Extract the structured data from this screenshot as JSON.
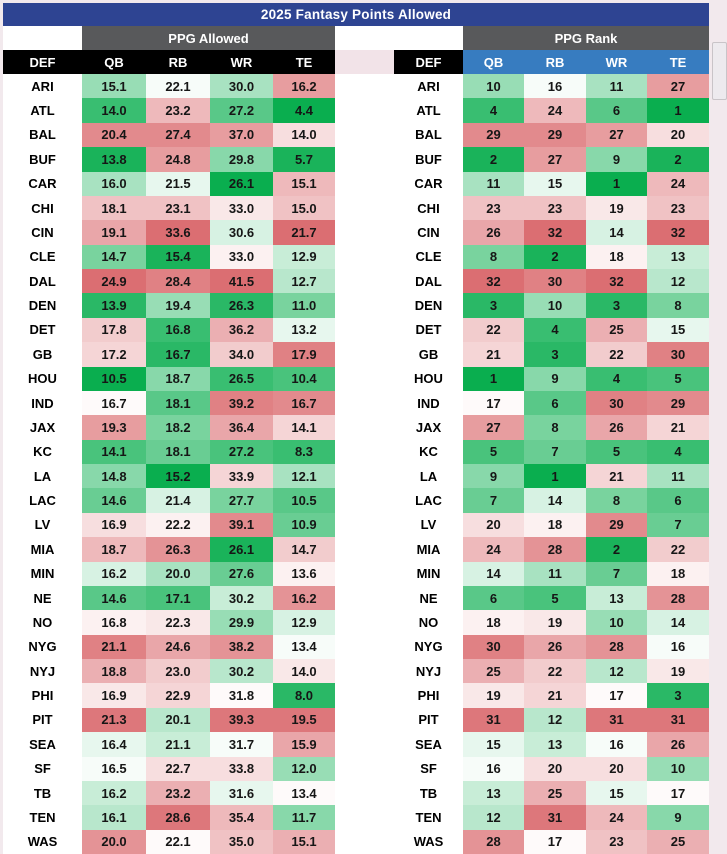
{
  "title": "2025 Fantasy Points Allowed",
  "colors": {
    "page_bg": "#F2E9ED",
    "title_bar_blue": "#2E4492",
    "group_bar_gray": "#58595B",
    "header_black": "#000000",
    "rank_header_blue": "#377CC0",
    "header_gap_pink": "#F2E3E8",
    "heat_green": "#0AAE4F",
    "heat_mid": "#FFFFFF",
    "heat_red": "#DB6E72"
  },
  "chart_data": [
    {
      "type": "table",
      "title": "PPG Allowed",
      "columns": [
        "DEF",
        "QB",
        "RB",
        "WR",
        "TE"
      ],
      "teams": [
        "ARI",
        "ATL",
        "BAL",
        "BUF",
        "CAR",
        "CHI",
        "CIN",
        "CLE",
        "DAL",
        "DEN",
        "DET",
        "GB",
        "HOU",
        "IND",
        "JAX",
        "KC",
        "LA",
        "LAC",
        "LV",
        "MIA",
        "MIN",
        "NE",
        "NO",
        "NYG",
        "NYJ",
        "PHI",
        "PIT",
        "SEA",
        "SF",
        "TB",
        "TEN",
        "WAS"
      ],
      "values": [
        [
          "15.1",
          "22.1",
          "30.0",
          "16.2"
        ],
        [
          "14.0",
          "23.2",
          "27.2",
          "4.4"
        ],
        [
          "20.4",
          "27.4",
          "37.0",
          "14.0"
        ],
        [
          "13.8",
          "24.8",
          "29.8",
          "5.7"
        ],
        [
          "16.0",
          "21.5",
          "26.1",
          "15.1"
        ],
        [
          "18.1",
          "23.1",
          "33.0",
          "15.0"
        ],
        [
          "19.1",
          "33.6",
          "30.6",
          "21.7"
        ],
        [
          "14.7",
          "15.4",
          "33.0",
          "12.9"
        ],
        [
          "24.9",
          "28.4",
          "41.5",
          "12.7"
        ],
        [
          "13.9",
          "19.4",
          "26.3",
          "11.0"
        ],
        [
          "17.8",
          "16.8",
          "36.2",
          "13.2"
        ],
        [
          "17.2",
          "16.7",
          "34.0",
          "17.9"
        ],
        [
          "10.5",
          "18.7",
          "26.5",
          "10.4"
        ],
        [
          "16.7",
          "18.1",
          "39.2",
          "16.7"
        ],
        [
          "19.3",
          "18.2",
          "36.4",
          "14.1"
        ],
        [
          "14.1",
          "18.1",
          "27.2",
          "8.3"
        ],
        [
          "14.8",
          "15.2",
          "33.9",
          "12.1"
        ],
        [
          "14.6",
          "21.4",
          "27.7",
          "10.5"
        ],
        [
          "16.9",
          "22.2",
          "39.1",
          "10.9"
        ],
        [
          "18.7",
          "26.3",
          "26.1",
          "14.7"
        ],
        [
          "16.2",
          "20.0",
          "27.6",
          "13.6"
        ],
        [
          "14.6",
          "17.1",
          "30.2",
          "16.2"
        ],
        [
          "16.8",
          "22.3",
          "29.9",
          "12.9"
        ],
        [
          "21.1",
          "24.6",
          "38.2",
          "13.4"
        ],
        [
          "18.8",
          "23.0",
          "30.2",
          "14.0"
        ],
        [
          "16.9",
          "22.9",
          "31.8",
          "8.0"
        ],
        [
          "21.3",
          "20.1",
          "39.3",
          "19.5"
        ],
        [
          "16.4",
          "21.1",
          "31.7",
          "15.9"
        ],
        [
          "16.5",
          "22.7",
          "33.8",
          "12.0"
        ],
        [
          "16.2",
          "23.2",
          "31.6",
          "13.4"
        ],
        [
          "16.1",
          "28.6",
          "35.4",
          "11.7"
        ],
        [
          "20.0",
          "22.1",
          "35.0",
          "15.1"
        ]
      ]
    },
    {
      "type": "table",
      "title": "PPG Rank",
      "columns": [
        "DEF",
        "QB",
        "RB",
        "WR",
        "TE"
      ],
      "teams": [
        "ARI",
        "ATL",
        "BAL",
        "BUF",
        "CAR",
        "CHI",
        "CIN",
        "CLE",
        "DAL",
        "DEN",
        "DET",
        "GB",
        "HOU",
        "IND",
        "JAX",
        "KC",
        "LA",
        "LAC",
        "LV",
        "MIA",
        "MIN",
        "NE",
        "NO",
        "NYG",
        "NYJ",
        "PHI",
        "PIT",
        "SEA",
        "SF",
        "TB",
        "TEN",
        "WAS"
      ],
      "values": [
        [
          10,
          16,
          11,
          27
        ],
        [
          4,
          24,
          6,
          1
        ],
        [
          29,
          29,
          27,
          20
        ],
        [
          2,
          27,
          9,
          2
        ],
        [
          11,
          15,
          1,
          24
        ],
        [
          23,
          23,
          19,
          23
        ],
        [
          26,
          32,
          14,
          32
        ],
        [
          8,
          2,
          18,
          13
        ],
        [
          32,
          30,
          32,
          12
        ],
        [
          3,
          10,
          3,
          8
        ],
        [
          22,
          4,
          25,
          15
        ],
        [
          21,
          3,
          22,
          30
        ],
        [
          1,
          9,
          4,
          5
        ],
        [
          17,
          6,
          30,
          29
        ],
        [
          27,
          8,
          26,
          21
        ],
        [
          5,
          7,
          5,
          4
        ],
        [
          9,
          1,
          21,
          11
        ],
        [
          7,
          14,
          8,
          6
        ],
        [
          20,
          18,
          29,
          7
        ],
        [
          24,
          28,
          2,
          22
        ],
        [
          14,
          11,
          7,
          18
        ],
        [
          6,
          5,
          13,
          28
        ],
        [
          18,
          19,
          10,
          14
        ],
        [
          30,
          26,
          28,
          16
        ],
        [
          25,
          22,
          12,
          19
        ],
        [
          19,
          21,
          17,
          3
        ],
        [
          31,
          12,
          31,
          31
        ],
        [
          15,
          13,
          16,
          26
        ],
        [
          16,
          20,
          20,
          10
        ],
        [
          13,
          25,
          15,
          17
        ],
        [
          12,
          31,
          24,
          9
        ],
        [
          28,
          17,
          23,
          25
        ]
      ]
    }
  ]
}
